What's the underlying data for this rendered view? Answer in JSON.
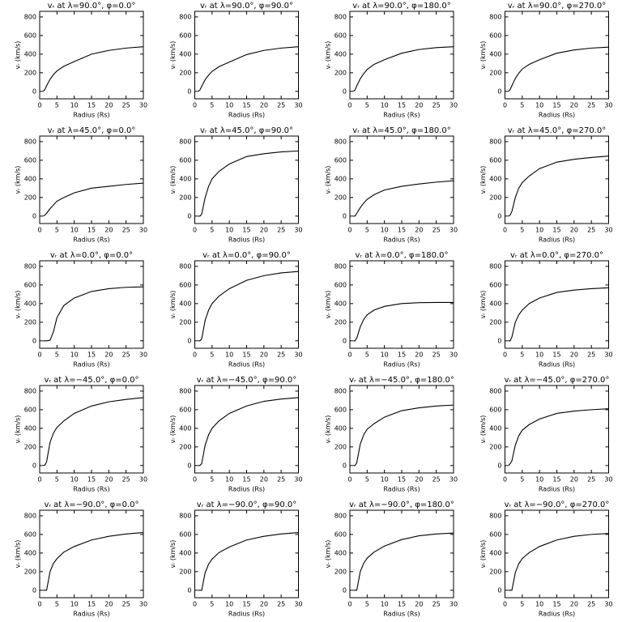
{
  "chart_data": [
    {
      "type": "line",
      "title": "vᵣ at λ=90.0°, φ=0.0°",
      "xlabel": "Radius (Rs)",
      "ylabel": "vᵣ (km/s)",
      "x": [
        1,
        1.5,
        2,
        3,
        4,
        5,
        7,
        10,
        15,
        20,
        25,
        30
      ],
      "values": [
        0,
        20,
        60,
        130,
        180,
        220,
        270,
        320,
        400,
        440,
        465,
        480
      ],
      "color": "#000000",
      "xlim": [
        0,
        30
      ],
      "xticks": [
        0,
        5,
        10,
        15,
        20,
        25,
        30
      ],
      "ylim": [
        -80,
        860
      ],
      "yticks": [
        0,
        200,
        400,
        600,
        800
      ]
    },
    {
      "type": "line",
      "title": "vᵣ at λ=90.0°, φ=90.0°",
      "xlabel": "Radius (Rs)",
      "ylabel": "vᵣ (km/s)",
      "x": [
        1,
        1.5,
        2,
        3,
        4,
        5,
        7,
        10,
        15,
        20,
        25,
        30
      ],
      "values": [
        0,
        15,
        55,
        125,
        175,
        215,
        265,
        315,
        395,
        440,
        465,
        480
      ],
      "color": "#000000",
      "xlim": [
        0,
        30
      ],
      "xticks": [
        0,
        5,
        10,
        15,
        20,
        25,
        30
      ],
      "ylim": [
        -80,
        860
      ],
      "yticks": [
        0,
        200,
        400,
        600,
        800
      ]
    },
    {
      "type": "line",
      "title": "vᵣ at λ=90.0°, φ=180.0°",
      "xlabel": "Radius (Rs)",
      "ylabel": "vᵣ (km/s)",
      "x": [
        1,
        1.5,
        2,
        3,
        4,
        5,
        7,
        10,
        15,
        20,
        25,
        30
      ],
      "values": [
        0,
        15,
        60,
        135,
        190,
        235,
        290,
        340,
        410,
        450,
        470,
        480
      ],
      "color": "#000000",
      "xlim": [
        0,
        30
      ],
      "xticks": [
        0,
        5,
        10,
        15,
        20,
        25,
        30
      ],
      "ylim": [
        -80,
        860
      ],
      "yticks": [
        0,
        200,
        400,
        600,
        800
      ]
    },
    {
      "type": "line",
      "title": "vᵣ at λ=90.0°, φ=270.0°",
      "xlabel": "Radius (Rs)",
      "ylabel": "vᵣ (km/s)",
      "x": [
        1,
        1.5,
        2,
        3,
        4,
        5,
        7,
        10,
        15,
        20,
        25,
        30
      ],
      "values": [
        0,
        20,
        60,
        140,
        195,
        240,
        290,
        340,
        410,
        445,
        465,
        475
      ],
      "color": "#000000",
      "xlim": [
        0,
        30
      ],
      "xticks": [
        0,
        5,
        10,
        15,
        20,
        25,
        30
      ],
      "ylim": [
        -80,
        860
      ],
      "yticks": [
        0,
        200,
        400,
        600,
        800
      ]
    },
    {
      "type": "line",
      "title": "vᵣ at λ=45.0°, φ=0.0°",
      "xlabel": "Radius (Rs)",
      "ylabel": "vᵣ (km/s)",
      "x": [
        1,
        1.5,
        2,
        3,
        4,
        5,
        7,
        10,
        15,
        20,
        25,
        30
      ],
      "values": [
        0,
        10,
        30,
        80,
        120,
        160,
        200,
        250,
        300,
        320,
        340,
        355
      ],
      "color": "#000000",
      "xlim": [
        0,
        30
      ],
      "xticks": [
        0,
        5,
        10,
        15,
        20,
        25,
        30
      ],
      "ylim": [
        -80,
        860
      ],
      "yticks": [
        0,
        200,
        400,
        600,
        800
      ]
    },
    {
      "type": "line",
      "title": "vᵣ at λ=45.0°, φ=90.0°",
      "xlabel": "Radius (Rs)",
      "ylabel": "vᵣ (km/s)",
      "x": [
        1,
        1.5,
        2,
        3,
        4,
        5,
        7,
        10,
        15,
        20,
        25,
        30
      ],
      "values": [
        0,
        0,
        20,
        200,
        320,
        400,
        480,
        560,
        640,
        670,
        690,
        700
      ],
      "color": "#000000",
      "xlim": [
        0,
        30
      ],
      "xticks": [
        0,
        5,
        10,
        15,
        20,
        25,
        30
      ],
      "ylim": [
        -80,
        860
      ],
      "yticks": [
        0,
        200,
        400,
        600,
        800
      ]
    },
    {
      "type": "line",
      "title": "vᵣ at λ=45.0°, φ=180.0°",
      "xlabel": "Radius (Rs)",
      "ylabel": "vᵣ (km/s)",
      "x": [
        1,
        1.5,
        2,
        3,
        4,
        5,
        7,
        10,
        15,
        20,
        25,
        30
      ],
      "values": [
        0,
        0,
        30,
        90,
        140,
        180,
        230,
        280,
        320,
        345,
        365,
        380
      ],
      "color": "#000000",
      "xlim": [
        0,
        30
      ],
      "xticks": [
        0,
        5,
        10,
        15,
        20,
        25,
        30
      ],
      "ylim": [
        -80,
        860
      ],
      "yticks": [
        0,
        200,
        400,
        600,
        800
      ]
    },
    {
      "type": "line",
      "title": "vᵣ at λ=45.0°, φ=270.0°",
      "xlabel": "Radius (Rs)",
      "ylabel": "vᵣ (km/s)",
      "x": [
        1,
        1.5,
        2,
        3,
        4,
        5,
        7,
        10,
        15,
        20,
        25,
        30
      ],
      "values": [
        0,
        10,
        50,
        200,
        300,
        360,
        430,
        510,
        580,
        610,
        630,
        645
      ],
      "color": "#000000",
      "xlim": [
        0,
        30
      ],
      "xticks": [
        0,
        5,
        10,
        15,
        20,
        25,
        30
      ],
      "ylim": [
        -80,
        860
      ],
      "yticks": [
        0,
        200,
        400,
        600,
        800
      ]
    },
    {
      "type": "line",
      "title": "vᵣ at λ=0.0°, φ=0.0°",
      "xlabel": "Radius (Rs)",
      "ylabel": "vᵣ (km/s)",
      "x": [
        1,
        1.5,
        2,
        3,
        4,
        5,
        7,
        10,
        15,
        20,
        25,
        30
      ],
      "values": [
        0,
        0,
        0,
        5,
        100,
        250,
        380,
        460,
        530,
        560,
        575,
        580
      ],
      "color": "#000000",
      "xlim": [
        0,
        30
      ],
      "xticks": [
        0,
        5,
        10,
        15,
        20,
        25,
        30
      ],
      "ylim": [
        -80,
        860
      ],
      "yticks": [
        0,
        200,
        400,
        600,
        800
      ]
    },
    {
      "type": "line",
      "title": "vᵣ at λ=0.0°, φ=90.0°",
      "xlabel": "Radius (Rs)",
      "ylabel": "vᵣ (km/s)",
      "x": [
        1,
        1.5,
        2,
        3,
        4,
        5,
        7,
        10,
        15,
        20,
        25,
        30
      ],
      "values": [
        0,
        0,
        20,
        220,
        330,
        400,
        480,
        560,
        650,
        700,
        730,
        745
      ],
      "color": "#000000",
      "xlim": [
        0,
        30
      ],
      "xticks": [
        0,
        5,
        10,
        15,
        20,
        25,
        30
      ],
      "ylim": [
        -80,
        860
      ],
      "yticks": [
        0,
        200,
        400,
        600,
        800
      ]
    },
    {
      "type": "line",
      "title": "vᵣ at λ=0.0°, φ=180.0°",
      "xlabel": "Radius (Rs)",
      "ylabel": "vᵣ (km/s)",
      "x": [
        1,
        1.5,
        2,
        3,
        4,
        5,
        7,
        10,
        15,
        20,
        25,
        30
      ],
      "values": [
        0,
        0,
        30,
        150,
        230,
        280,
        330,
        370,
        400,
        410,
        412,
        412
      ],
      "color": "#000000",
      "xlim": [
        0,
        30
      ],
      "xticks": [
        0,
        5,
        10,
        15,
        20,
        25,
        30
      ],
      "ylim": [
        -80,
        860
      ],
      "yticks": [
        0,
        200,
        400,
        600,
        800
      ]
    },
    {
      "type": "line",
      "title": "vᵣ at λ=0.0°, φ=270.0°",
      "xlabel": "Radius (Rs)",
      "ylabel": "vᵣ (km/s)",
      "x": [
        1,
        1.5,
        2,
        3,
        4,
        5,
        7,
        10,
        15,
        20,
        25,
        30
      ],
      "values": [
        0,
        0,
        40,
        200,
        280,
        330,
        400,
        460,
        520,
        545,
        560,
        570
      ],
      "color": "#000000",
      "xlim": [
        0,
        30
      ],
      "xticks": [
        0,
        5,
        10,
        15,
        20,
        25,
        30
      ],
      "ylim": [
        -80,
        860
      ],
      "yticks": [
        0,
        200,
        400,
        600,
        800
      ]
    },
    {
      "type": "line",
      "title": "vᵣ at λ=−45.0°, φ=0.0°",
      "xlabel": "Radius (Rs)",
      "ylabel": "vᵣ (km/s)",
      "x": [
        1,
        1.5,
        2,
        3,
        4,
        5,
        7,
        10,
        15,
        20,
        25,
        30
      ],
      "values": [
        0,
        5,
        40,
        250,
        350,
        410,
        480,
        560,
        640,
        685,
        710,
        730
      ],
      "color": "#000000",
      "xlim": [
        0,
        30
      ],
      "xticks": [
        0,
        5,
        10,
        15,
        20,
        25,
        30
      ],
      "ylim": [
        -80,
        860
      ],
      "yticks": [
        0,
        200,
        400,
        600,
        800
      ]
    },
    {
      "type": "line",
      "title": "vᵣ at λ=−45.0°, φ=90.0°",
      "xlabel": "Radius (Rs)",
      "ylabel": "vᵣ (km/s)",
      "x": [
        1,
        1.5,
        2,
        3,
        4,
        5,
        7,
        10,
        15,
        20,
        25,
        30
      ],
      "values": [
        0,
        0,
        20,
        220,
        330,
        400,
        480,
        560,
        640,
        690,
        715,
        730
      ],
      "color": "#000000",
      "xlim": [
        0,
        30
      ],
      "xticks": [
        0,
        5,
        10,
        15,
        20,
        25,
        30
      ],
      "ylim": [
        -80,
        860
      ],
      "yticks": [
        0,
        200,
        400,
        600,
        800
      ]
    },
    {
      "type": "line",
      "title": "vᵣ at λ=−45.0°, φ=180.0°",
      "xlabel": "Radius (Rs)",
      "ylabel": "vᵣ (km/s)",
      "x": [
        1,
        1.5,
        2,
        3,
        4,
        5,
        7,
        10,
        15,
        20,
        25,
        30
      ],
      "values": [
        0,
        0,
        30,
        230,
        330,
        390,
        450,
        520,
        590,
        620,
        640,
        650
      ],
      "color": "#000000",
      "xlim": [
        0,
        30
      ],
      "xticks": [
        0,
        5,
        10,
        15,
        20,
        25,
        30
      ],
      "ylim": [
        -80,
        860
      ],
      "yticks": [
        0,
        200,
        400,
        600,
        800
      ]
    },
    {
      "type": "line",
      "title": "vᵣ at λ=−45.0°, φ=270.0°",
      "xlabel": "Radius (Rs)",
      "ylabel": "vᵣ (km/s)",
      "x": [
        1,
        1.5,
        2,
        3,
        4,
        5,
        7,
        10,
        15,
        20,
        25,
        30
      ],
      "values": [
        0,
        20,
        50,
        220,
        320,
        380,
        440,
        500,
        560,
        585,
        600,
        610
      ],
      "color": "#000000",
      "xlim": [
        0,
        30
      ],
      "xticks": [
        0,
        5,
        10,
        15,
        20,
        25,
        30
      ],
      "ylim": [
        -80,
        860
      ],
      "yticks": [
        0,
        200,
        400,
        600,
        800
      ]
    },
    {
      "type": "line",
      "title": "vᵣ at λ=−90.0°, φ=0.0°",
      "xlabel": "Radius (Rs)",
      "ylabel": "vᵣ (km/s)",
      "x": [
        1,
        1.5,
        2,
        3,
        4,
        5,
        7,
        10,
        15,
        20,
        25,
        30
      ],
      "values": [
        0,
        0,
        0,
        200,
        290,
        340,
        410,
        470,
        540,
        580,
        605,
        620
      ],
      "color": "#000000",
      "xlim": [
        0,
        30
      ],
      "xticks": [
        0,
        5,
        10,
        15,
        20,
        25,
        30
      ],
      "ylim": [
        -80,
        860
      ],
      "yticks": [
        0,
        200,
        400,
        600,
        800
      ]
    },
    {
      "type": "line",
      "title": "vᵣ at λ=−90.0°, φ=90.0°",
      "xlabel": "Radius (Rs)",
      "ylabel": "vᵣ (km/s)",
      "x": [
        1,
        1.5,
        2,
        3,
        4,
        5,
        7,
        10,
        15,
        20,
        25,
        30
      ],
      "values": [
        0,
        0,
        0,
        190,
        280,
        335,
        405,
        465,
        540,
        580,
        605,
        620
      ],
      "color": "#000000",
      "xlim": [
        0,
        30
      ],
      "xticks": [
        0,
        5,
        10,
        15,
        20,
        25,
        30
      ],
      "ylim": [
        -80,
        860
      ],
      "yticks": [
        0,
        200,
        400,
        600,
        800
      ]
    },
    {
      "type": "line",
      "title": "vᵣ at λ=−90.0°, φ=180.0°",
      "xlabel": "Radius (Rs)",
      "ylabel": "vᵣ (km/s)",
      "x": [
        1,
        1.5,
        2,
        3,
        4,
        5,
        7,
        10,
        15,
        20,
        25,
        30
      ],
      "values": [
        0,
        0,
        0,
        200,
        290,
        345,
        410,
        475,
        545,
        585,
        605,
        615
      ],
      "color": "#000000",
      "xlim": [
        0,
        30
      ],
      "xticks": [
        0,
        5,
        10,
        15,
        20,
        25,
        30
      ],
      "ylim": [
        -80,
        860
      ],
      "yticks": [
        0,
        200,
        400,
        600,
        800
      ]
    },
    {
      "type": "line",
      "title": "vᵣ at λ=−90.0°, φ=270.0°",
      "xlabel": "Radius (Rs)",
      "ylabel": "vᵣ (km/s)",
      "x": [
        1,
        1.5,
        2,
        3,
        4,
        5,
        7,
        10,
        15,
        20,
        25,
        30
      ],
      "values": [
        0,
        0,
        0,
        190,
        285,
        340,
        405,
        470,
        540,
        580,
        600,
        610
      ],
      "color": "#000000",
      "xlim": [
        0,
        30
      ],
      "xticks": [
        0,
        5,
        10,
        15,
        20,
        25,
        30
      ],
      "ylim": [
        -80,
        860
      ],
      "yticks": [
        0,
        200,
        400,
        600,
        800
      ]
    }
  ]
}
